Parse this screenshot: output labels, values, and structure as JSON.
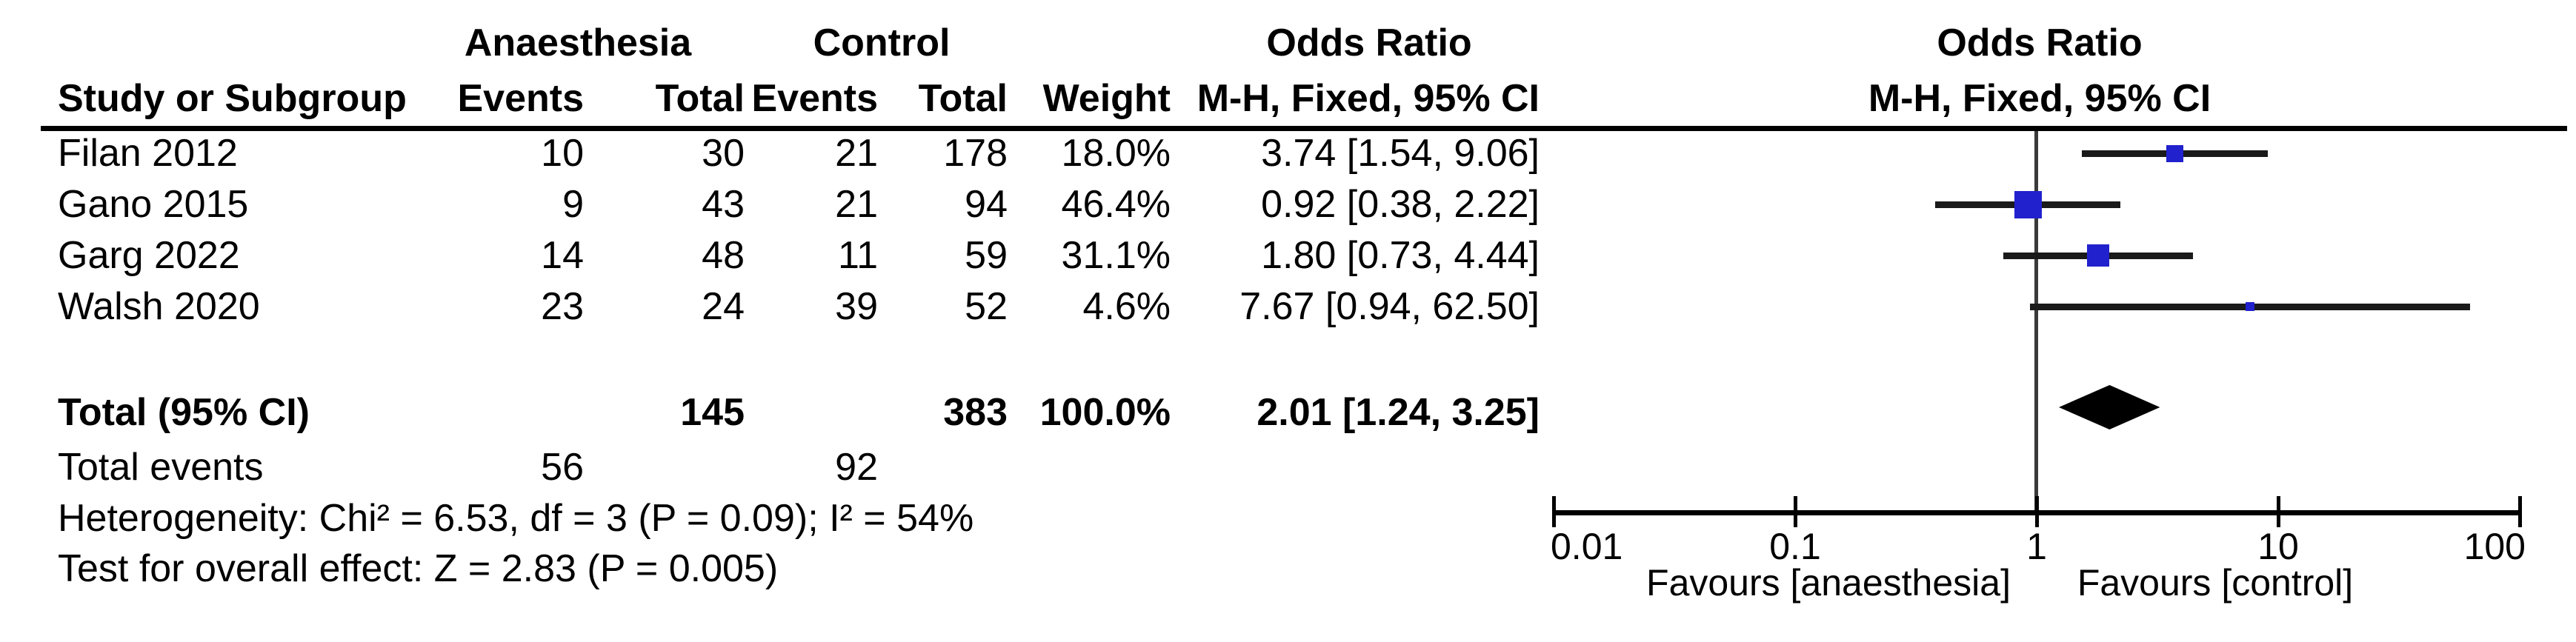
{
  "table": {
    "group1_header": "Anaesthesia",
    "group2_header": "Control",
    "or_header": "Odds Ratio",
    "or_subheader": "M-H, Fixed, 95% CI",
    "col_study": "Study or Subgroup",
    "col_events": "Events",
    "col_total": "Total",
    "col_weight": "Weight",
    "rows": [
      {
        "study": "Filan 2012",
        "a_events": "10",
        "a_total": "30",
        "c_events": "21",
        "c_total": "178",
        "weight": "18.0%",
        "or_ci": "3.74 [1.54, 9.06]"
      },
      {
        "study": "Gano 2015",
        "a_events": "9",
        "a_total": "43",
        "c_events": "21",
        "c_total": "94",
        "weight": "46.4%",
        "or_ci": "0.92 [0.38, 2.22]"
      },
      {
        "study": "Garg 2022",
        "a_events": "14",
        "a_total": "48",
        "c_events": "11",
        "c_total": "59",
        "weight": "31.1%",
        "or_ci": "1.80 [0.73, 4.44]"
      },
      {
        "study": "Walsh 2020",
        "a_events": "23",
        "a_total": "24",
        "c_events": "39",
        "c_total": "52",
        "weight": "4.6%",
        "or_ci": "7.67 [0.94, 62.50]"
      }
    ],
    "total_row": {
      "label": "Total (95% CI)",
      "a_total": "145",
      "c_total": "383",
      "weight": "100.0%",
      "or_ci": "2.01 [1.24, 3.25]"
    },
    "total_events": {
      "label": "Total events",
      "a_events": "56",
      "c_events": "92"
    },
    "heterogeneity_line": "Heterogeneity: Chi² = 6.53, df = 3 (P = 0.09); I² = 54%",
    "overall_effect_line": "Test for overall effect: Z = 2.83 (P = 0.005)"
  },
  "plot": {
    "title": "Odds Ratio",
    "subtitle": "M-H, Fixed, 95% CI",
    "favours_left": "Favours [anaesthesia]",
    "favours_right": "Favours [control]",
    "marker_color": "#2121cd",
    "line_color": "#1a1a1a",
    "diamond_color": "#000000"
  },
  "chart_data": {
    "type": "scatter",
    "subtype": "forest_plot_fixed_effect_odds_ratio",
    "x_scale": "log10",
    "xlim": [
      0.01,
      100
    ],
    "x_ticks": [
      0.01,
      0.1,
      1,
      10,
      100
    ],
    "null_line": 1,
    "studies": [
      {
        "label": "Filan 2012",
        "anaesthesia_events": 10,
        "anaesthesia_total": 30,
        "control_events": 21,
        "control_total": 178,
        "weight_pct": 18.0,
        "or": 3.74,
        "ci_low": 1.54,
        "ci_high": 9.06
      },
      {
        "label": "Gano 2015",
        "anaesthesia_events": 9,
        "anaesthesia_total": 43,
        "control_events": 21,
        "control_total": 94,
        "weight_pct": 46.4,
        "or": 0.92,
        "ci_low": 0.38,
        "ci_high": 2.22
      },
      {
        "label": "Garg 2022",
        "anaesthesia_events": 14,
        "anaesthesia_total": 48,
        "control_events": 11,
        "control_total": 59,
        "weight_pct": 31.1,
        "or": 1.8,
        "ci_low": 0.73,
        "ci_high": 4.44
      },
      {
        "label": "Walsh 2020",
        "anaesthesia_events": 23,
        "anaesthesia_total": 24,
        "control_events": 39,
        "control_total": 52,
        "weight_pct": 4.6,
        "or": 7.67,
        "ci_low": 0.94,
        "ci_high": 62.5
      }
    ],
    "total": {
      "label": "Total (95% CI)",
      "anaesthesia_total": 145,
      "control_total": 383,
      "weight_pct": 100.0,
      "or": 2.01,
      "ci_low": 1.24,
      "ci_high": 3.25
    },
    "total_events": {
      "anaesthesia": 56,
      "control": 92
    },
    "heterogeneity": "Chi² = 6.53, df = 3 (P = 0.09); I² = 54%",
    "test_overall_effect": "Z = 2.83 (P = 0.005)",
    "favours_left": "Favours [anaesthesia]",
    "favours_right": "Favours [control]"
  }
}
